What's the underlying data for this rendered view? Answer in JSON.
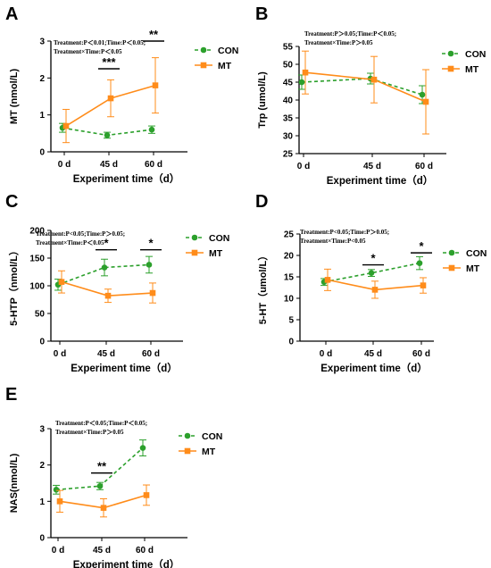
{
  "colors": {
    "con": "#2ca02c",
    "mt": "#ff8c1a",
    "axis": "#000000"
  },
  "chart_data": [
    {
      "panel": "A",
      "type": "line",
      "categories": [
        "0 d",
        "45 d",
        "60 d"
      ],
      "xlabel": "Experiment time（d）",
      "ylabel": "MT (nmol/L)",
      "ylim": [
        0,
        3
      ],
      "yticks": [
        "0",
        "1",
        "2",
        "3"
      ],
      "legend": "top-right",
      "annotation": [
        "Treatment:P＜0.01;Time:P＜0.05;",
        "Treatment×Time:P＜0.05"
      ],
      "series": [
        {
          "name": "CON",
          "values": [
            0.65,
            0.45,
            0.6
          ],
          "err": [
            0.12,
            0.08,
            0.1
          ]
        },
        {
          "name": "MT",
          "values": [
            0.7,
            1.45,
            1.8
          ],
          "err": [
            0.45,
            0.5,
            0.75
          ]
        }
      ],
      "significance": [
        {
          "at": "45 d",
          "mark": "***",
          "y": 2.25
        },
        {
          "at": "60 d",
          "mark": "**",
          "y": 3.0
        }
      ]
    },
    {
      "panel": "B",
      "type": "line",
      "categories": [
        "0 d",
        "45 d",
        "60 d"
      ],
      "xlabel": "Experiment time（d）",
      "ylabel": "Trp (umol/L)",
      "ylim": [
        25,
        55
      ],
      "yticks": [
        "25",
        "30",
        "35",
        "40",
        "45",
        "50",
        "55"
      ],
      "legend": "top-right",
      "annotation": [
        "Treatment:P＞0.05;Time:P＜0.05;",
        "Treatment×Time:P＞0.05"
      ],
      "series": [
        {
          "name": "CON",
          "values": [
            45,
            46,
            41.5
          ],
          "err": [
            2,
            1.5,
            2.5
          ]
        },
        {
          "name": "MT",
          "values": [
            47.7,
            45.7,
            39.5
          ],
          "err": [
            6,
            6.5,
            9
          ]
        }
      ],
      "significance": []
    },
    {
      "panel": "C",
      "type": "line",
      "categories": [
        "0 d",
        "45 d",
        "60 d"
      ],
      "xlabel": "Experiment time（d）",
      "ylabel": "5-HTP（nmol/L）",
      "ylim": [
        0,
        200
      ],
      "yticks": [
        "0",
        "50",
        "100",
        "150",
        "200"
      ],
      "legend": "top-right",
      "annotation": [
        "Treatment:P<0.05;Time:P＞0.05;",
        "Treatment×Time:P＜0.05"
      ],
      "series": [
        {
          "name": "CON",
          "values": [
            102,
            133,
            138
          ],
          "err": [
            10,
            15,
            15
          ]
        },
        {
          "name": "MT",
          "values": [
            107,
            82,
            87
          ],
          "err": [
            20,
            12,
            18
          ]
        }
      ],
      "significance": [
        {
          "at": "45 d",
          "mark": "*",
          "y": 165
        },
        {
          "at": "60 d",
          "mark": "*",
          "y": 165
        }
      ]
    },
    {
      "panel": "D",
      "type": "line",
      "categories": [
        "0 d",
        "45 d",
        "60 d"
      ],
      "xlabel": "Experiment time（d）",
      "ylabel": "5-HT（umol/L）",
      "ylim": [
        0,
        25
      ],
      "yticks": [
        "0",
        "5",
        "10",
        "15",
        "20",
        "25"
      ],
      "legend": "top-right",
      "annotation": [
        "Treatment:P<0.05;Time:P＞0.05;",
        "Treatment×Time:P<0.05"
      ],
      "series": [
        {
          "name": "CON",
          "values": [
            13.8,
            15.9,
            18.2
          ],
          "err": [
            0.8,
            0.8,
            1.5
          ]
        },
        {
          "name": "MT",
          "values": [
            14.3,
            12,
            13
          ],
          "err": [
            2.5,
            2,
            1.8
          ]
        }
      ],
      "significance": [
        {
          "at": "45 d",
          "mark": "*",
          "y": 17.8
        },
        {
          "at": "60 d",
          "mark": "*",
          "y": 20.6
        }
      ]
    },
    {
      "panel": "E",
      "type": "line",
      "categories": [
        "0 d",
        "45 d",
        "60 d"
      ],
      "xlabel": "Experiment time（d）",
      "ylabel": "NAS(nmol/L)",
      "ylim": [
        0,
        3
      ],
      "yticks": [
        "0",
        "1",
        "2",
        "3"
      ],
      "legend": "top-right",
      "annotation": [
        "Treatment:P＜0.05;Time:P＜0.05;",
        "Treatment×Time:P＞0.05"
      ],
      "series": [
        {
          "name": "CON",
          "values": [
            1.32,
            1.42,
            2.47
          ],
          "err": [
            0.12,
            0.1,
            0.22
          ]
        },
        {
          "name": "MT",
          "values": [
            1.0,
            0.82,
            1.17
          ],
          "err": [
            0.3,
            0.25,
            0.28
          ]
        }
      ],
      "significance": [
        {
          "at": "45 d",
          "mark": "**",
          "y": 1.78
        }
      ]
    }
  ]
}
